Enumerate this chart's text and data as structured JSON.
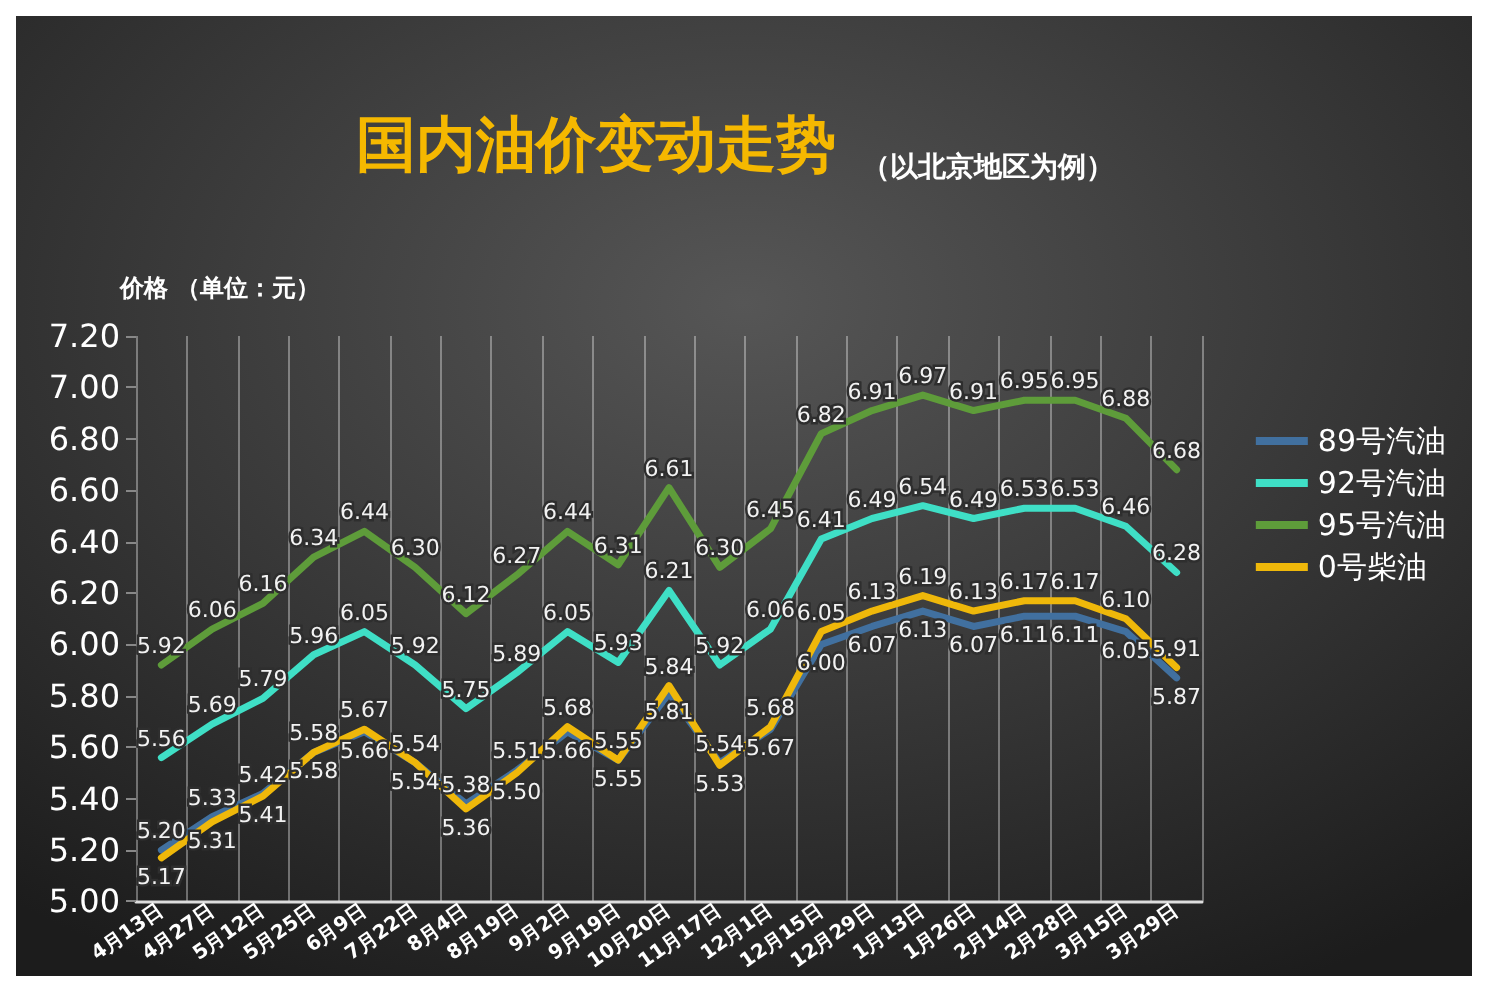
{
  "chart_data": {
    "type": "line",
    "title": "国内油价变动走势",
    "subtitle": "（以北京地区为例）",
    "ylabel": "价格 （单位：元）",
    "categories": [
      "4月13日",
      "4月27日",
      "5月12日",
      "5月25日",
      "6月9日",
      "7月22日",
      "8月4日",
      "8月19日",
      "9月2日",
      "9月19日",
      "10月20日",
      "11月17日",
      "12月1日",
      "12月15日",
      "12月29日",
      "1月13日",
      "1月26日",
      "2月14日",
      "2月28日",
      "3月15日",
      "3月29日"
    ],
    "series": [
      {
        "name": "89号汽油",
        "color": "#41709f",
        "values": [
          5.2,
          5.33,
          5.42,
          5.58,
          5.66,
          5.54,
          5.38,
          5.51,
          5.66,
          5.55,
          5.81,
          5.54,
          5.67,
          6.0,
          6.07,
          6.13,
          6.07,
          6.11,
          6.11,
          6.05,
          5.87
        ],
        "value_labels": [
          "5.20",
          "5.33",
          "5.42",
          "5.58",
          "5.66",
          "5.54",
          "5.38",
          "5.51",
          "5.66",
          "5.55",
          "5.81",
          "5.54",
          "5.67",
          "6.00",
          "6.07",
          "6.13",
          "6.07",
          "6.11",
          "6.11",
          "6.05",
          "5.87"
        ]
      },
      {
        "name": "92号汽油",
        "color": "#3fdfc6",
        "values": [
          5.56,
          5.69,
          5.79,
          5.96,
          6.05,
          5.92,
          5.75,
          5.89,
          6.05,
          5.93,
          6.21,
          5.92,
          6.06,
          6.41,
          6.49,
          6.54,
          6.49,
          6.53,
          6.53,
          6.46,
          6.28
        ],
        "value_labels": [
          "5.56",
          "5.69",
          "5.79",
          "5.96",
          "6.05",
          "5.92",
          "5.75",
          "5.89",
          "6.05",
          "5.93",
          "6.21",
          "5.92",
          "6.06",
          "6.41",
          "6.49",
          "6.54",
          "6.49",
          "6.53",
          "6.53",
          "6.46",
          "6.28"
        ]
      },
      {
        "name": "95号汽油",
        "color": "#5e9c3a",
        "values": [
          5.92,
          6.06,
          6.16,
          6.34,
          6.44,
          6.3,
          6.12,
          6.27,
          6.44,
          6.31,
          6.61,
          6.3,
          6.45,
          6.82,
          6.91,
          6.97,
          6.91,
          6.95,
          6.95,
          6.88,
          6.68
        ],
        "value_labels": [
          "5.92",
          "6.06",
          "6.16",
          "6.34",
          "6.44",
          "6.30",
          "6.12",
          "6.27",
          "6.44",
          "6.31",
          "6.61",
          "6.30",
          "6.45",
          "6.82",
          "6.91",
          "6.97",
          "6.91",
          "6.95",
          "6.95",
          "6.88",
          "6.68"
        ]
      },
      {
        "name": "0号柴油",
        "color": "#efb80a",
        "values": [
          5.17,
          5.31,
          5.41,
          5.58,
          5.67,
          5.54,
          5.36,
          5.5,
          5.68,
          5.55,
          5.84,
          5.53,
          5.68,
          6.05,
          6.13,
          6.19,
          6.13,
          6.17,
          6.17,
          6.1,
          5.91
        ],
        "value_labels": [
          "5.17",
          "5.31",
          "5.41",
          "5.58",
          "5.67",
          "5.54",
          "5.36",
          "5.50",
          "5.68",
          "5.55",
          "5.84",
          "5.53",
          "5.68",
          "6.05",
          "6.13",
          "6.19",
          "6.13",
          "6.17",
          "6.17",
          "6.10",
          "5.91"
        ]
      }
    ],
    "ylim": [
      5.0,
      7.2
    ],
    "yticks": [
      {
        "value": 5.0,
        "label": "5.00"
      },
      {
        "value": 5.2,
        "label": "5.20"
      },
      {
        "value": 5.4,
        "label": "5.40"
      },
      {
        "value": 5.6,
        "label": "5.60"
      },
      {
        "value": 5.8,
        "label": "5.80"
      },
      {
        "value": 6.0,
        "label": "6.00"
      },
      {
        "value": 6.2,
        "label": "6.20"
      },
      {
        "value": 6.4,
        "label": "6.40"
      },
      {
        "value": 6.6,
        "label": "6.60"
      },
      {
        "value": 6.8,
        "label": "6.80"
      },
      {
        "value": 7.0,
        "label": "7.00"
      },
      {
        "value": 7.2,
        "label": "7.20"
      }
    ],
    "grid": "x",
    "legend": "right",
    "marker": "none",
    "line_style": "solid"
  }
}
